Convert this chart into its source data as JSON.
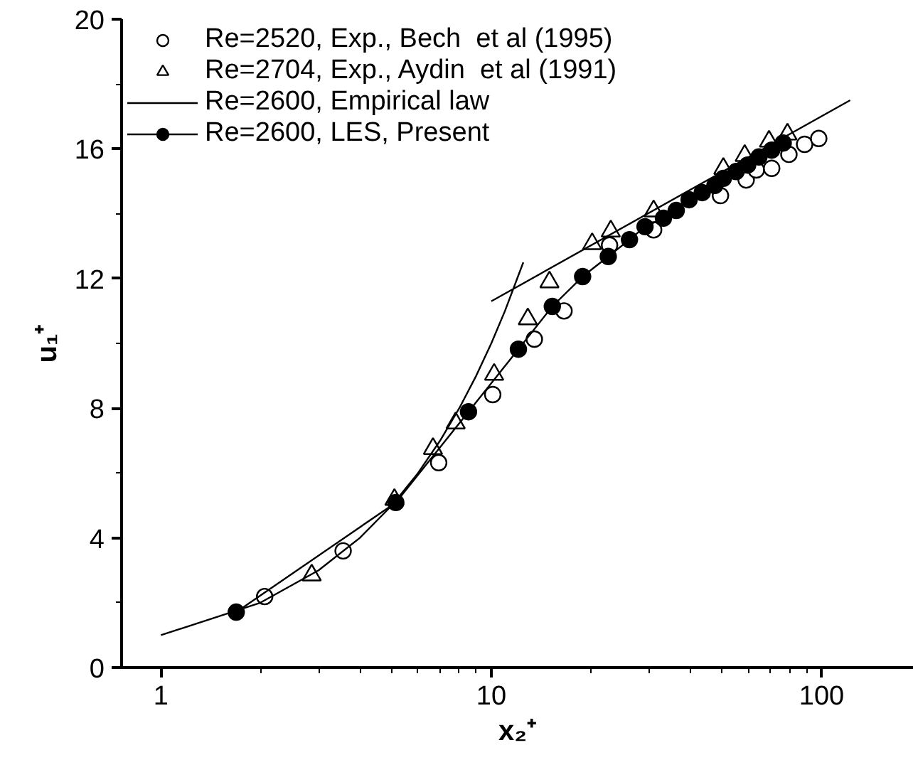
{
  "chart_data": {
    "type": "scatter",
    "xlabel": "x₂⁺",
    "ylabel": "u₁⁺",
    "log": "x",
    "xlim": [
      0.76,
      190
    ],
    "xticks": [
      1,
      10,
      100
    ],
    "ylim": [
      0,
      20
    ],
    "yticks": [
      0,
      4,
      8,
      12,
      16,
      20
    ],
    "grid": false,
    "legend": "top left",
    "series": [
      {
        "name": "Re=2520, Exp., Bech  et al (1995)",
        "marker": "circle",
        "color": "#000000",
        "x": [
          2.06,
          3.56,
          6.93,
          10.1,
          13.5,
          16.6,
          22.8,
          31.0,
          49.4,
          59.1,
          63.4,
          70.6,
          79.6,
          88.8,
          98
        ],
        "values": [
          2.19,
          3.6,
          6.32,
          8.42,
          10.13,
          11.0,
          13.03,
          13.5,
          14.56,
          15.04,
          15.35,
          15.4,
          15.83,
          16.14,
          16.32
        ]
      },
      {
        "name": "Re=2704, Exp., Aydin  et al (1991)",
        "marker": "triangle",
        "color": "#000000",
        "x": [
          2.86,
          5.09,
          6.66,
          7.8,
          10.2,
          12.9,
          15.0,
          20.2,
          23.0,
          31.0,
          50.4,
          58.5,
          69.3,
          78.8
        ],
        "values": [
          2.85,
          5.18,
          6.75,
          7.54,
          9.04,
          10.75,
          11.89,
          13.07,
          13.46,
          14.08,
          15.39,
          15.79,
          16.23,
          16.45
        ]
      },
      {
        "name": "Re=2600, Empirical law",
        "type": "line",
        "marker": "none",
        "color": "#000000",
        "x": [
          1,
          2,
          3,
          4,
          5,
          6,
          7,
          8,
          9,
          10,
          11,
          12.5,
          null,
          10,
          122
        ],
        "values": [
          1,
          2,
          3,
          4,
          5,
          6,
          7,
          8,
          9,
          10,
          11,
          12.5,
          null,
          11.3,
          17.5
        ]
      },
      {
        "name": "Re=2600, LES, Present",
        "type": "line",
        "marker": "circle",
        "color": "#000000",
        "x": [
          1.69,
          5.14,
          8.53,
          12.08,
          15.3,
          18.9,
          22.6,
          26.2,
          29.2,
          33.2,
          36.3,
          39.7,
          43.5,
          47.5,
          50.4,
          55.1,
          59.7,
          64.6,
          70.6,
          76.5
        ],
        "values": [
          1.71,
          5.09,
          7.89,
          9.82,
          11.14,
          12.06,
          12.68,
          13.2,
          13.6,
          13.86,
          14.1,
          14.43,
          14.65,
          14.87,
          15.09,
          15.3,
          15.5,
          15.75,
          15.96,
          16.18
        ]
      }
    ]
  }
}
